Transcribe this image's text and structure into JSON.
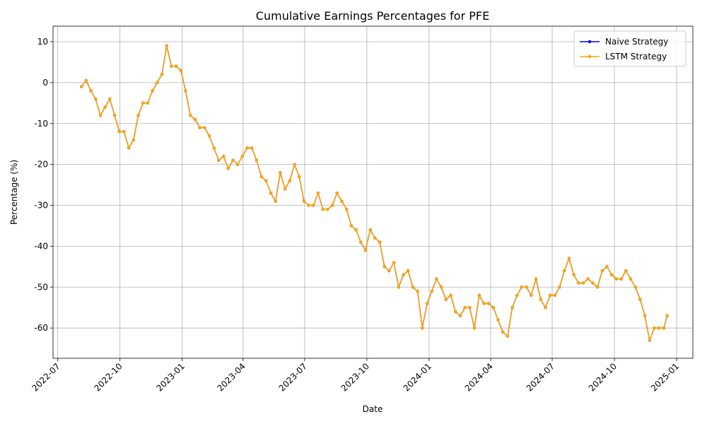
{
  "chart_data": {
    "type": "line",
    "title": "Cumulative Earnings Percentages for PFE",
    "x_label": "Date",
    "y_label": "Percentage (%)",
    "x": [
      "2022-08-05",
      "2022-08-12",
      "2022-08-19",
      "2022-08-26",
      "2022-09-02",
      "2022-09-09",
      "2022-09-16",
      "2022-09-23",
      "2022-09-30",
      "2022-10-07",
      "2022-10-14",
      "2022-10-21",
      "2022-10-28",
      "2022-11-04",
      "2022-11-11",
      "2022-11-18",
      "2022-11-25",
      "2022-12-02",
      "2022-12-09",
      "2022-12-16",
      "2022-12-23",
      "2022-12-30",
      "2023-01-06",
      "2023-01-13",
      "2023-01-20",
      "2023-01-27",
      "2023-02-03",
      "2023-02-10",
      "2023-02-17",
      "2023-02-24",
      "2023-03-03",
      "2023-03-10",
      "2023-03-17",
      "2023-03-24",
      "2023-03-31",
      "2023-04-07",
      "2023-04-14",
      "2023-04-21",
      "2023-04-28",
      "2023-05-05",
      "2023-05-12",
      "2023-05-19",
      "2023-05-26",
      "2023-06-02",
      "2023-06-09",
      "2023-06-16",
      "2023-06-23",
      "2023-06-30",
      "2023-07-07",
      "2023-07-14",
      "2023-07-21",
      "2023-07-28",
      "2023-08-04",
      "2023-08-11",
      "2023-08-18",
      "2023-08-25",
      "2023-09-01",
      "2023-09-08",
      "2023-09-15",
      "2023-09-22",
      "2023-09-29",
      "2023-10-06",
      "2023-10-13",
      "2023-10-20",
      "2023-10-27",
      "2023-11-03",
      "2023-11-10",
      "2023-11-17",
      "2023-11-24",
      "2023-12-01",
      "2023-12-08",
      "2023-12-15",
      "2023-12-22",
      "2023-12-29",
      "2024-01-05",
      "2024-01-12",
      "2024-01-19",
      "2024-01-26",
      "2024-02-02",
      "2024-02-09",
      "2024-02-16",
      "2024-02-23",
      "2024-03-01",
      "2024-03-08",
      "2024-03-15",
      "2024-03-22",
      "2024-03-29",
      "2024-04-05",
      "2024-04-12",
      "2024-04-19",
      "2024-04-26",
      "2024-05-03",
      "2024-05-10",
      "2024-05-17",
      "2024-05-24",
      "2024-05-31",
      "2024-06-07",
      "2024-06-14",
      "2024-06-21",
      "2024-06-28",
      "2024-07-05",
      "2024-07-12",
      "2024-07-19",
      "2024-07-26",
      "2024-08-02",
      "2024-08-09",
      "2024-08-16",
      "2024-08-23",
      "2024-08-30",
      "2024-09-06",
      "2024-09-13",
      "2024-09-20",
      "2024-09-27",
      "2024-10-04",
      "2024-10-11",
      "2024-10-18",
      "2024-10-25",
      "2024-11-01",
      "2024-11-08",
      "2024-11-15",
      "2024-11-22",
      "2024-11-29",
      "2024-12-06",
      "2024-12-13",
      "2024-12-18"
    ],
    "series": [
      {
        "name": "Naive Strategy",
        "color": "#0000ff",
        "values": [
          -1,
          0.5,
          -2,
          -4,
          -8,
          -6,
          -4,
          -8,
          -12,
          -12,
          -16,
          -14,
          -8,
          -5,
          -5,
          -2,
          0,
          2,
          9,
          4,
          4,
          3,
          -2,
          -8,
          -9,
          -11,
          -11,
          -13,
          -16,
          -19,
          -18,
          -21,
          -19,
          -20,
          -18,
          -16,
          -16,
          -19,
          -23,
          -24,
          -27,
          -29,
          -22,
          -26,
          -24,
          -20,
          -23,
          -29,
          -30,
          -30,
          -27,
          -31,
          -31,
          -30,
          -27,
          -29,
          -31,
          -35,
          -36,
          -39,
          -41,
          -36,
          -38,
          -39,
          -45,
          -46,
          -44,
          -50,
          -47,
          -46,
          -50,
          -51,
          -60,
          -54,
          -51,
          -48,
          -50,
          -53,
          -52,
          -56,
          -57,
          -55,
          -55,
          -60,
          -52,
          -54,
          -54,
          -55,
          -58,
          -61,
          -62,
          -55,
          -52,
          -50,
          -50,
          -52,
          -48,
          -53,
          -55,
          -52,
          -52,
          -50,
          -46,
          -43,
          -47,
          -49,
          -49,
          -48,
          -49,
          -50,
          -46,
          -45,
          -47,
          -48,
          -48,
          -46,
          -48,
          -50,
          -53,
          -57,
          -63,
          -60,
          -60,
          -60,
          -57
        ]
      },
      {
        "name": "LSTM Strategy",
        "color": "#ffa500",
        "values": [
          -1,
          0.5,
          -2,
          -4,
          -8,
          -6,
          -4,
          -8,
          -12,
          -12,
          -16,
          -14,
          -8,
          -5,
          -5,
          -2,
          0,
          2,
          9,
          4,
          4,
          3,
          -2,
          -8,
          -9,
          -11,
          -11,
          -13,
          -16,
          -19,
          -18,
          -21,
          -19,
          -20,
          -18,
          -16,
          -16,
          -19,
          -23,
          -24,
          -27,
          -29,
          -22,
          -26,
          -24,
          -20,
          -23,
          -29,
          -30,
          -30,
          -27,
          -31,
          -31,
          -30,
          -27,
          -29,
          -31,
          -35,
          -36,
          -39,
          -41,
          -36,
          -38,
          -39,
          -45,
          -46,
          -44,
          -50,
          -47,
          -46,
          -50,
          -51,
          -60,
          -54,
          -51,
          -48,
          -50,
          -53,
          -52,
          -56,
          -57,
          -55,
          -55,
          -60,
          -52,
          -54,
          -54,
          -55,
          -58,
          -61,
          -62,
          -55,
          -52,
          -50,
          -50,
          -52,
          -48,
          -53,
          -55,
          -52,
          -52,
          -50,
          -46,
          -43,
          -47,
          -49,
          -49,
          -48,
          -49,
          -50,
          -46,
          -45,
          -47,
          -48,
          -48,
          -46,
          -48,
          -50,
          -53,
          -57,
          -63,
          -60,
          -60,
          -60,
          -57
        ]
      }
    ],
    "xlim": [
      "2022-06-24",
      "2025-01-25"
    ],
    "xticks": [
      {
        "value": "2022-07-01",
        "label": "2022-07"
      },
      {
        "value": "2022-10-01",
        "label": "2022-10"
      },
      {
        "value": "2023-01-01",
        "label": "2023-01"
      },
      {
        "value": "2023-04-01",
        "label": "2023-04"
      },
      {
        "value": "2023-07-01",
        "label": "2023-07"
      },
      {
        "value": "2023-10-01",
        "label": "2023-10"
      },
      {
        "value": "2024-01-01",
        "label": "2024-01"
      },
      {
        "value": "2024-04-01",
        "label": "2024-04"
      },
      {
        "value": "2024-07-01",
        "label": "2024-07"
      },
      {
        "value": "2024-10-01",
        "label": "2024-10"
      },
      {
        "value": "2025-01-01",
        "label": "2025-01"
      }
    ],
    "ylim": [
      -67.4,
      13.8
    ],
    "yticks": [
      10,
      0,
      -10,
      -20,
      -30,
      -40,
      -50,
      -60
    ],
    "grid": true,
    "legend": "upper right"
  }
}
